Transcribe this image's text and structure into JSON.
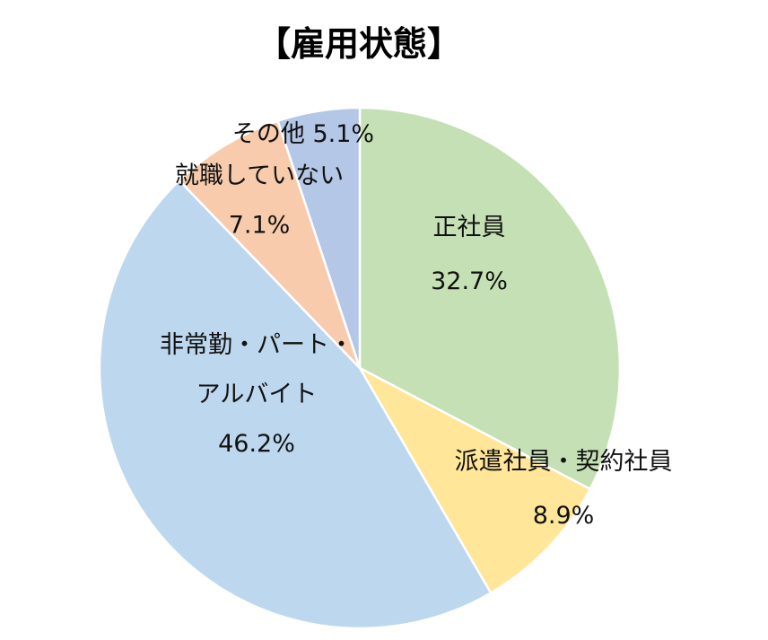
{
  "chart_data": {
    "type": "pie",
    "title": "【雇用状態】",
    "start_angle_deg": 0,
    "direction": "clockwise",
    "slices": [
      {
        "category": "正社員",
        "value": 32.7,
        "value_label": "32.7%",
        "label_lines": [
          "正社員"
        ],
        "color": "#C5E0B4"
      },
      {
        "category": "派遣社員・契約社員",
        "value": 8.9,
        "value_label": "8.9%",
        "label_lines": [
          "派遣社員・契約社員"
        ],
        "color": "#FFE699"
      },
      {
        "category": "非常勤・パート・アルバイト",
        "value": 46.2,
        "value_label": "46.2%",
        "label_lines": [
          "非常勤・パート・",
          "アルバイト"
        ],
        "color": "#BDD7EE"
      },
      {
        "category": "就職していない",
        "value": 7.1,
        "value_label": "7.1%",
        "label_lines": [
          "就職していない"
        ],
        "color": "#F8CBAD"
      },
      {
        "category": "その他",
        "value": 5.1,
        "value_label": "5.1%",
        "label_lines": [
          "その他"
        ],
        "color": "#B4C7E7",
        "inline_value": true
      }
    ],
    "border_color": "#FFFFFF"
  }
}
